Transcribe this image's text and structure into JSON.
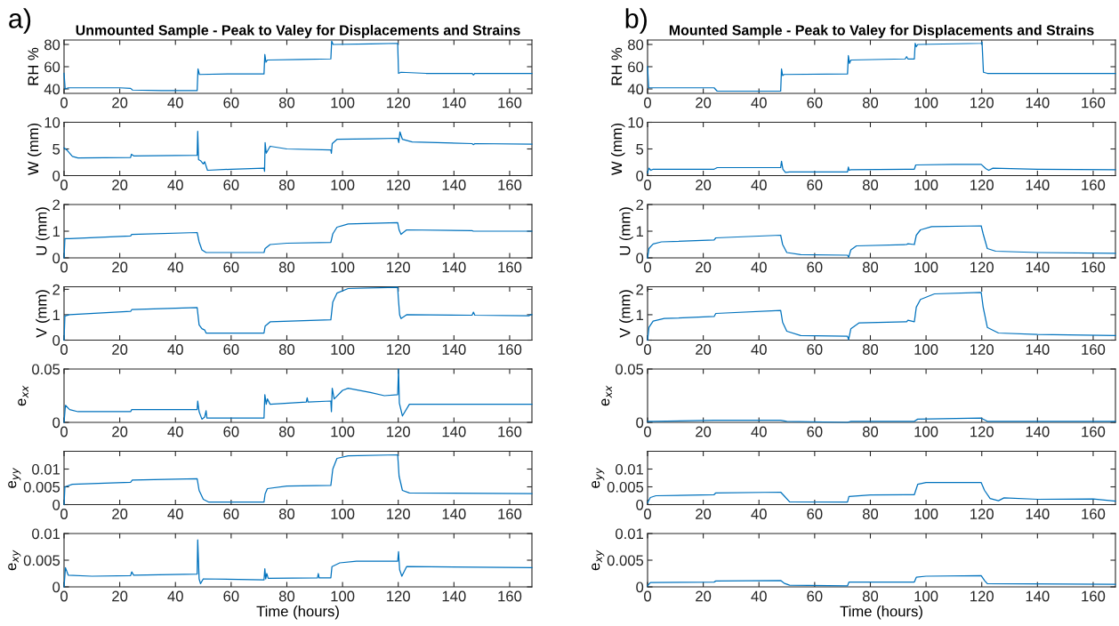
{
  "chart_data": [
    {
      "type": "line",
      "title": "Unmounted Sample - Peak to Valey for Displacements and Strains",
      "ylabel": "RH %",
      "annotations": [
        "a)"
      ],
      "xlim": [
        0,
        168
      ],
      "xticks": [
        0,
        20,
        40,
        60,
        80,
        100,
        120,
        140,
        160
      ],
      "ylim": [
        36,
        84
      ],
      "yticks": [
        40,
        60,
        80
      ],
      "grid": false,
      "series": [
        {
          "color": "#0072bd",
          "x": [
            0,
            0.4,
            1.5,
            10,
            20,
            23.9,
            24.6,
            35,
            47.8,
            48.1,
            48.6,
            60,
            71.8,
            72.1,
            72.5,
            73,
            85,
            95.8,
            96.1,
            96.6,
            110,
            119.8,
            120.1,
            121,
            130,
            146.5,
            147,
            147.5,
            168
          ],
          "values": [
            54,
            40,
            41,
            41,
            41,
            40.5,
            39,
            38.5,
            38.5,
            58,
            53,
            53.5,
            53.5,
            71,
            64,
            66,
            66.5,
            67,
            83,
            80,
            80.5,
            81,
            54,
            55,
            54,
            54,
            52.5,
            54,
            54
          ]
        }
      ]
    },
    {
      "type": "line",
      "ylabel": "W (mm)",
      "xlim": [
        0,
        168
      ],
      "xticks": [
        0,
        20,
        40,
        60,
        80,
        100,
        120,
        140,
        160
      ],
      "ylim": [
        0,
        10
      ],
      "yticks": [
        0,
        5,
        10
      ],
      "grid": false,
      "series": [
        {
          "color": "#0072bd",
          "x": [
            0,
            1,
            3,
            5,
            23.9,
            24.2,
            25,
            47.8,
            48,
            48.3,
            49,
            50,
            50.5,
            51.5,
            60,
            71.8,
            72,
            72.2,
            72.6,
            74,
            80,
            95.8,
            96,
            96.3,
            98,
            110,
            119.8,
            120.2,
            120.6,
            121.5,
            125,
            146.5,
            147,
            147.5,
            168
          ],
          "values": [
            5.2,
            4.8,
            3.6,
            3.3,
            3.4,
            4,
            3.7,
            3.8,
            8.3,
            3,
            2.8,
            2.2,
            2.6,
            1,
            1.2,
            1.4,
            0.8,
            6.2,
            4.2,
            5.5,
            5,
            4.8,
            4.2,
            6,
            6.8,
            6.9,
            7,
            6.2,
            8.2,
            6.8,
            6.3,
            6,
            5.8,
            6,
            5.9
          ]
        }
      ]
    },
    {
      "type": "line",
      "ylabel": "U (mm)",
      "xlim": [
        0,
        168
      ],
      "xticks": [
        0,
        20,
        40,
        60,
        80,
        100,
        120,
        140,
        160
      ],
      "ylim": [
        0,
        2
      ],
      "yticks": [
        0,
        1,
        2
      ],
      "grid": false,
      "series": [
        {
          "color": "#0072bd",
          "x": [
            0,
            0.3,
            2,
            23.9,
            24.3,
            47.8,
            48.5,
            49.5,
            51,
            71.8,
            72.2,
            74,
            80,
            95.8,
            96.5,
            98,
            102,
            119.8,
            120.3,
            121,
            123,
            146.5,
            147,
            168
          ],
          "values": [
            0,
            0.72,
            0.72,
            0.82,
            0.88,
            0.95,
            0.6,
            0.3,
            0.2,
            0.2,
            0.35,
            0.5,
            0.55,
            0.58,
            0.9,
            1.15,
            1.27,
            1.32,
            1.05,
            0.88,
            1.05,
            1.02,
            1.0,
            1.0
          ]
        }
      ]
    },
    {
      "type": "line",
      "ylabel": "V (mm)",
      "xlim": [
        0,
        168
      ],
      "xticks": [
        0,
        20,
        40,
        60,
        80,
        100,
        120,
        140,
        160
      ],
      "ylim": [
        0,
        2.1
      ],
      "yticks": [
        0,
        1,
        2
      ],
      "grid": false,
      "series": [
        {
          "color": "#0072bd",
          "x": [
            0,
            0.3,
            2,
            23.9,
            24.3,
            47.8,
            48.5,
            49.5,
            50.5,
            51,
            71.8,
            72.2,
            74,
            95.8,
            96.5,
            98,
            102,
            119.8,
            120,
            120.5,
            121,
            123,
            146.5,
            147,
            147.5,
            167,
            167.5,
            168
          ],
          "values": [
            0,
            0.95,
            1.0,
            1.13,
            1.2,
            1.28,
            0.6,
            0.45,
            0.4,
            0.28,
            0.28,
            0.55,
            0.72,
            0.8,
            1.5,
            1.85,
            2.03,
            2.08,
            1.7,
            1.0,
            0.85,
            1.0,
            0.98,
            1.1,
            0.98,
            0.96,
            1.0,
            1.0
          ]
        }
      ]
    },
    {
      "type": "line",
      "ylabel": "e$_{xx}$",
      "xlim": [
        0,
        168
      ],
      "xticks": [
        0,
        20,
        40,
        60,
        80,
        100,
        120,
        140,
        160
      ],
      "ylim": [
        0,
        0.05
      ],
      "yticks": [
        0,
        0.05
      ],
      "grid": false,
      "series": [
        {
          "color": "#0072bd",
          "x": [
            0,
            0.5,
            2,
            5,
            23.9,
            24.3,
            47.8,
            48,
            48.5,
            49.5,
            50.5,
            51,
            51.3,
            71.8,
            72.1,
            72.6,
            73,
            74,
            87,
            87.3,
            87.6,
            95.8,
            96,
            96.3,
            97,
            100,
            102,
            110,
            115,
            119.8,
            120.1,
            120.4,
            121.5,
            124,
            168
          ],
          "values": [
            0,
            0.016,
            0.012,
            0.01,
            0.01,
            0.012,
            0.012,
            0.02,
            0.01,
            0.003,
            0.005,
            0.011,
            0.004,
            0.004,
            0.026,
            0.017,
            0.022,
            0.017,
            0.019,
            0.023,
            0.019,
            0.02,
            0.01,
            0.032,
            0.022,
            0.03,
            0.032,
            0.028,
            0.025,
            0.026,
            0.05,
            0.018,
            0.006,
            0.017,
            0.017
          ]
        }
      ]
    },
    {
      "type": "line",
      "ylabel": "e$_{yy}$",
      "xlim": [
        0,
        168
      ],
      "xticks": [
        0,
        20,
        40,
        60,
        80,
        100,
        120,
        140,
        160
      ],
      "ylim": [
        0,
        0.015
      ],
      "yticks": [
        0,
        0.005,
        0.01
      ],
      "grid": false,
      "series": [
        {
          "color": "#0072bd",
          "x": [
            0,
            0.3,
            3,
            23.9,
            24.5,
            47.8,
            48.5,
            50,
            52,
            71.8,
            72.2,
            73,
            80,
            95.8,
            96.5,
            98,
            102,
            119.8,
            120.3,
            121.5,
            124,
            168
          ],
          "values": [
            0,
            0.005,
            0.0057,
            0.0063,
            0.0069,
            0.0073,
            0.004,
            0.0015,
            0.0007,
            0.0007,
            0.003,
            0.0045,
            0.0052,
            0.0054,
            0.01,
            0.013,
            0.0137,
            0.014,
            0.008,
            0.004,
            0.0033,
            0.0031
          ]
        }
      ]
    },
    {
      "type": "line",
      "ylabel": "e$_{xy}$",
      "xlabel": "Time (hours)",
      "xlim": [
        0,
        168
      ],
      "xticks": [
        0,
        20,
        40,
        60,
        80,
        100,
        120,
        140,
        160
      ],
      "ylim": [
        0,
        0.01
      ],
      "yticks": [
        0,
        0.005,
        0.01
      ],
      "grid": false,
      "series": [
        {
          "color": "#0072bd",
          "x": [
            0,
            0.5,
            1.5,
            10,
            23.9,
            24.3,
            25,
            47.8,
            48,
            48.5,
            49,
            50,
            71.8,
            72.1,
            72.4,
            72.8,
            73.3,
            91,
            91.3,
            91.6,
            95.8,
            96.2,
            99,
            105,
            119.8,
            120.1,
            120.5,
            121.3,
            123,
            168
          ],
          "values": [
            0,
            0.0036,
            0.0022,
            0.002,
            0.0021,
            0.0028,
            0.0022,
            0.0024,
            0.0088,
            0.0015,
            0.0006,
            0.0015,
            0.0013,
            0.0034,
            0.0015,
            0.0025,
            0.0016,
            0.0017,
            0.0025,
            0.0017,
            0.0017,
            0.0038,
            0.0045,
            0.0048,
            0.0048,
            0.0066,
            0.0032,
            0.002,
            0.0038,
            0.0036
          ]
        }
      ]
    },
    {
      "type": "line",
      "title": "Mounted Sample - Peak to Valey for Displacements and Strains",
      "ylabel": "RH %",
      "annotations": [
        "b)"
      ],
      "xlim": [
        0,
        168
      ],
      "xticks": [
        0,
        20,
        40,
        60,
        80,
        100,
        120,
        140,
        160
      ],
      "ylim": [
        36,
        84
      ],
      "yticks": [
        40,
        60,
        80
      ],
      "grid": false,
      "series": [
        {
          "color": "#0072bd",
          "x": [
            0,
            0.4,
            20,
            23.9,
            25,
            47.8,
            48.1,
            48.5,
            49,
            71.8,
            72.1,
            72.5,
            73,
            92.5,
            93,
            93.5,
            95.8,
            96.1,
            96.5,
            97,
            119.8,
            120.1,
            120.6,
            122,
            168
          ],
          "values": [
            60,
            41,
            41,
            41,
            38,
            38,
            58,
            52,
            53,
            53.5,
            70,
            63,
            66,
            67,
            69,
            67,
            67,
            81,
            78,
            80,
            81,
            82,
            55,
            54,
            54
          ]
        }
      ]
    },
    {
      "type": "line",
      "ylabel": "W (mm)",
      "xlim": [
        0,
        168
      ],
      "xticks": [
        0,
        20,
        40,
        60,
        80,
        100,
        120,
        140,
        160
      ],
      "ylim": [
        0,
        10
      ],
      "yticks": [
        0,
        5,
        10
      ],
      "grid": false,
      "series": [
        {
          "color": "#0072bd",
          "x": [
            0,
            0.5,
            1.2,
            2,
            23.9,
            25,
            47.8,
            48.1,
            48.6,
            49.5,
            51,
            71.8,
            72.1,
            72.4,
            73,
            95.8,
            96.3,
            110,
            119.8,
            121.5,
            122.5,
            124,
            140,
            168
          ],
          "values": [
            0.5,
            1.4,
            1.0,
            1.2,
            1.2,
            1.5,
            1.5,
            2.7,
            1.2,
            0.6,
            0.7,
            0.7,
            1.6,
            1.0,
            1.1,
            1.2,
            2.0,
            2.1,
            2.1,
            1.3,
            1.0,
            1.4,
            1.2,
            1.1
          ]
        }
      ]
    },
    {
      "type": "line",
      "ylabel": "U (mm)",
      "xlim": [
        0,
        168
      ],
      "xticks": [
        0,
        20,
        40,
        60,
        80,
        100,
        120,
        140,
        160
      ],
      "ylim": [
        0,
        2
      ],
      "yticks": [
        0,
        1,
        2
      ],
      "grid": false,
      "series": [
        {
          "color": "#0072bd",
          "x": [
            0,
            0.5,
            2,
            5,
            23.9,
            24.5,
            47.8,
            48.5,
            50,
            55,
            71.8,
            72.2,
            73,
            75,
            93,
            93.5,
            95.8,
            96.5,
            98,
            102,
            119.8,
            120.5,
            122,
            125,
            140,
            168
          ],
          "values": [
            0,
            0.35,
            0.52,
            0.6,
            0.67,
            0.75,
            0.85,
            0.5,
            0.2,
            0.12,
            0.1,
            0.02,
            0.3,
            0.45,
            0.5,
            0.53,
            0.5,
            0.85,
            1.05,
            1.17,
            1.2,
            0.9,
            0.35,
            0.25,
            0.2,
            0.17
          ]
        }
      ]
    },
    {
      "type": "line",
      "ylabel": "V (mm)",
      "xlim": [
        0,
        168
      ],
      "xticks": [
        0,
        20,
        40,
        60,
        80,
        100,
        120,
        140,
        160
      ],
      "ylim": [
        0,
        2.1
      ],
      "yticks": [
        0,
        1,
        2
      ],
      "grid": false,
      "series": [
        {
          "color": "#0072bd",
          "x": [
            0,
            0.5,
            2,
            6,
            23.9,
            24.5,
            47.8,
            48.5,
            50,
            55,
            71.8,
            72.2,
            73,
            76,
            93,
            93.5,
            95.8,
            96.5,
            98,
            103,
            119.8,
            120.5,
            122,
            126,
            140,
            168
          ],
          "values": [
            0,
            0.5,
            0.75,
            0.85,
            0.93,
            1.05,
            1.17,
            0.7,
            0.35,
            0.18,
            0.15,
            0.02,
            0.45,
            0.68,
            0.72,
            0.78,
            0.72,
            1.3,
            1.6,
            1.82,
            1.88,
            1.3,
            0.5,
            0.28,
            0.22,
            0.18
          ]
        }
      ]
    },
    {
      "type": "line",
      "ylabel": "e$_{xx}$",
      "xlim": [
        0,
        168
      ],
      "xticks": [
        0,
        20,
        40,
        60,
        80,
        100,
        120,
        140,
        160
      ],
      "ylim": [
        0,
        0.05
      ],
      "yticks": [
        0,
        0.05
      ],
      "grid": false,
      "series": [
        {
          "color": "#0072bd",
          "x": [
            0,
            2,
            23.9,
            24.5,
            47.8,
            50,
            71.8,
            73,
            95.8,
            97,
            119.8,
            122,
            168
          ],
          "values": [
            0.001,
            0.001,
            0.002,
            0.002,
            0.002,
            0.001,
            0,
            0.001,
            0.001,
            0.003,
            0.004,
            0.001,
            0.001
          ]
        }
      ]
    },
    {
      "type": "line",
      "ylabel": "e$_{yy}$",
      "xlim": [
        0,
        168
      ],
      "xticks": [
        0,
        20,
        40,
        60,
        80,
        100,
        120,
        140,
        160
      ],
      "ylim": [
        0,
        0.015
      ],
      "yticks": [
        0,
        0.005,
        0.01
      ],
      "grid": false,
      "series": [
        {
          "color": "#0072bd",
          "x": [
            0,
            1,
            3,
            23.9,
            24.5,
            47.8,
            49,
            51,
            71.8,
            72.3,
            80,
            95.8,
            97,
            100,
            119.8,
            121,
            123,
            126,
            128,
            140,
            160,
            168
          ],
          "values": [
            0.0005,
            0.002,
            0.0025,
            0.0028,
            0.0033,
            0.0035,
            0.0025,
            0.0008,
            0.0007,
            0.0023,
            0.0027,
            0.0028,
            0.0057,
            0.0062,
            0.0062,
            0.004,
            0.0017,
            0.0011,
            0.0019,
            0.0015,
            0.0016,
            0.001
          ]
        }
      ]
    },
    {
      "type": "line",
      "ylabel": "e$_{xy}$",
      "xlabel": "Time (hours)",
      "xlim": [
        0,
        168
      ],
      "xticks": [
        0,
        20,
        40,
        60,
        80,
        100,
        120,
        140,
        160
      ],
      "ylim": [
        0,
        0.01
      ],
      "yticks": [
        0,
        0.005,
        0.01
      ],
      "grid": false,
      "series": [
        {
          "color": "#0072bd",
          "x": [
            0,
            1,
            23.9,
            24.5,
            47.8,
            49,
            51,
            71.8,
            72.3,
            95.8,
            96.5,
            100,
            119.8,
            121,
            122,
            168
          ],
          "values": [
            0.0002,
            0.0008,
            0.0009,
            0.0011,
            0.0012,
            0.0007,
            0.0003,
            0.0002,
            0.0009,
            0.0009,
            0.0018,
            0.002,
            0.0021,
            0.0012,
            0.0006,
            0.0005
          ]
        }
      ]
    }
  ]
}
